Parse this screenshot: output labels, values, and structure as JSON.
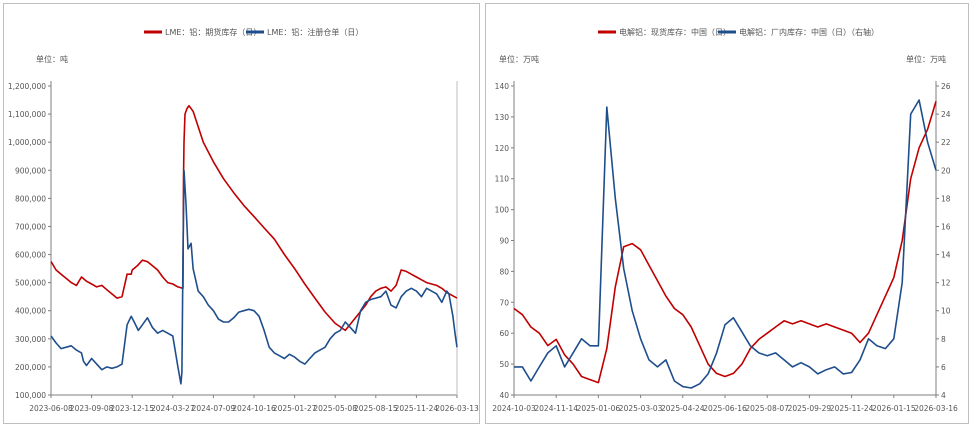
{
  "colors": {
    "red": "#c00000",
    "blue": "#1f4e8c",
    "axis": "#7f7f7f",
    "text": "#555555"
  },
  "chart_data": [
    {
      "type": "line",
      "legend": [
        "LME：铝：期货库存（日）",
        "LME：铝：注册仓单（日）"
      ],
      "left_unit": "单位：吨",
      "ylim": [
        100000,
        1200000
      ],
      "y_ticks": [
        "100,000",
        "200,000",
        "300,000",
        "400,000",
        "500,000",
        "600,000",
        "700,000",
        "800,000",
        "900,000",
        "1,000,000",
        "1,100,000",
        "1,200,000"
      ],
      "x_ticks": [
        "2023-06-08",
        "2023-09-08",
        "2023-12-15",
        "2024-03-27",
        "2024-07-09",
        "2024-10-16",
        "2025-01-27",
        "2025-05-08",
        "2025-08-15",
        "2025-11-24",
        "2026-03-13"
      ],
      "x_range": [
        0,
        40
      ],
      "series": [
        {
          "name": "LME：铝：期货库存（日）",
          "color": "red",
          "x": [
            0,
            0.5,
            1,
            1.5,
            2,
            2.5,
            3,
            3.5,
            4,
            4.5,
            5,
            5.5,
            6,
            6.5,
            7,
            7.5,
            7.9,
            8,
            8.5,
            9,
            9.5,
            10,
            10.5,
            11,
            11.5,
            12,
            12.5,
            13,
            13.05,
            13.1,
            13.2,
            13.4,
            13.6,
            14,
            15,
            16,
            17,
            18,
            19,
            20,
            21,
            22,
            23,
            24,
            25,
            26,
            27,
            28,
            29,
            30,
            31,
            31.5,
            32,
            32.5,
            33,
            33.5,
            34,
            34.5,
            35,
            35.5,
            36,
            36.5,
            37,
            37.5,
            38,
            38.5,
            39,
            39.5,
            40
          ],
          "y": [
            575000,
            545000,
            530000,
            515000,
            500000,
            490000,
            520000,
            505000,
            495000,
            485000,
            490000,
            475000,
            460000,
            445000,
            450000,
            530000,
            530000,
            545000,
            560000,
            580000,
            575000,
            560000,
            545000,
            520000,
            500000,
            495000,
            485000,
            480000,
            870000,
            1000000,
            1100000,
            1120000,
            1130000,
            1110000,
            1000000,
            930000,
            870000,
            820000,
            775000,
            735000,
            695000,
            655000,
            600000,
            550000,
            495000,
            445000,
            395000,
            355000,
            330000,
            375000,
            420000,
            450000,
            470000,
            480000,
            485000,
            470000,
            490000,
            545000,
            540000,
            530000,
            520000,
            510000,
            500000,
            495000,
            490000,
            480000,
            465000,
            455000,
            445000
          ]
        },
        {
          "name": "LME：铝：注册仓单（日）",
          "color": "blue",
          "x": [
            0,
            0.5,
            1,
            1.5,
            2,
            2.5,
            3,
            3.2,
            3.5,
            4,
            4.5,
            5,
            5.5,
            6,
            6.5,
            7,
            7.5,
            7.9,
            8.2,
            8.6,
            9,
            9.5,
            10,
            10.5,
            11,
            11.5,
            12,
            12.5,
            12.8,
            12.9,
            13,
            13.1,
            13.3,
            13.5,
            13.8,
            14,
            14.5,
            15,
            15.5,
            16,
            16.5,
            17,
            17.5,
            18,
            18.5,
            19,
            19.5,
            20,
            20.5,
            21,
            21.5,
            22,
            22.5,
            23,
            23.5,
            24,
            24.5,
            25,
            25.5,
            26,
            26.5,
            27,
            27.5,
            28,
            28.5,
            29,
            29.5,
            30,
            30.5,
            31,
            31.5,
            32,
            32.5,
            33,
            33.5,
            34,
            34.5,
            35,
            35.5,
            36,
            36.5,
            37,
            37.5,
            38,
            38.5,
            39,
            39.2,
            39.4,
            39.6,
            39.8,
            40
          ],
          "y": [
            310000,
            285000,
            265000,
            270000,
            275000,
            260000,
            250000,
            220000,
            205000,
            230000,
            210000,
            190000,
            200000,
            195000,
            200000,
            210000,
            350000,
            380000,
            360000,
            330000,
            350000,
            375000,
            340000,
            320000,
            330000,
            320000,
            310000,
            200000,
            140000,
            180000,
            600000,
            900000,
            780000,
            620000,
            640000,
            550000,
            470000,
            450000,
            420000,
            400000,
            370000,
            360000,
            360000,
            375000,
            395000,
            400000,
            405000,
            400000,
            380000,
            330000,
            270000,
            250000,
            240000,
            230000,
            245000,
            235000,
            220000,
            210000,
            230000,
            250000,
            260000,
            270000,
            300000,
            320000,
            330000,
            360000,
            340000,
            320000,
            400000,
            430000,
            440000,
            445000,
            450000,
            470000,
            420000,
            410000,
            450000,
            470000,
            480000,
            470000,
            450000,
            480000,
            470000,
            460000,
            430000,
            470000,
            460000,
            420000,
            380000,
            320000,
            270000
          ]
        }
      ]
    },
    {
      "type": "line",
      "legend": [
        "电解铝：现货库存：中国（日）",
        "电解铝：厂内库存：中国（日）（右轴）"
      ],
      "left_unit": "单位：万吨",
      "right_unit": "单位：万吨",
      "ylim": [
        40,
        140
      ],
      "y2lim": [
        4,
        26
      ],
      "y_ticks": [
        "40",
        "50",
        "60",
        "70",
        "80",
        "90",
        "100",
        "110",
        "120",
        "130",
        "140"
      ],
      "y2_ticks": [
        "4",
        "6",
        "8",
        "10",
        "12",
        "14",
        "16",
        "18",
        "20",
        "22",
        "24",
        "26"
      ],
      "x_ticks": [
        "2024-10-03",
        "2024-11-14",
        "2025-01-06",
        "2025-03-03",
        "2025-04-24",
        "2025-06-16",
        "2025-08-07",
        "2025-09-29",
        "2025-11-24",
        "2026-01-15",
        "2026-03-16"
      ],
      "x_range": [
        0,
        50
      ],
      "series": [
        {
          "name": "电解铝：现货库存：中国（日）",
          "axis": "left",
          "color": "red",
          "x": [
            0,
            1,
            2,
            3,
            4,
            5,
            6,
            7,
            8,
            9,
            10,
            11,
            12,
            13,
            14,
            15,
            16,
            17,
            18,
            19,
            20,
            21,
            22,
            23,
            24,
            25,
            26,
            27,
            28,
            29,
            30,
            31,
            32,
            33,
            34,
            35,
            36,
            37,
            38,
            39,
            40,
            41,
            42,
            43,
            44,
            45,
            46,
            47,
            48,
            49,
            50
          ],
          "y": [
            68,
            66,
            62,
            60,
            56,
            58,
            53,
            50,
            46,
            45,
            44,
            55,
            75,
            88,
            89,
            87,
            82,
            77,
            72,
            68,
            66,
            62,
            56,
            50,
            47,
            46,
            47,
            50,
            55,
            58,
            60,
            62,
            64,
            63,
            64,
            63,
            62,
            63,
            62,
            61,
            60,
            57,
            60,
            66,
            72,
            78,
            90,
            110,
            120,
            126,
            135
          ]
        },
        {
          "name": "电解铝：厂内库存：中国（日）（右轴）",
          "axis": "right",
          "color": "blue",
          "x": [
            0,
            1,
            2,
            3,
            4,
            5,
            6,
            7,
            8,
            9,
            10,
            11,
            12,
            13,
            14,
            15,
            16,
            17,
            18,
            19,
            20,
            21,
            22,
            23,
            24,
            25,
            26,
            27,
            28,
            29,
            30,
            31,
            32,
            33,
            34,
            35,
            36,
            37,
            38,
            39,
            40,
            41,
            42,
            43,
            44,
            45,
            46,
            47,
            48,
            49,
            50
          ],
          "y": [
            6.0,
            6.0,
            5.0,
            6.0,
            7.0,
            7.5,
            6.0,
            7.0,
            8.0,
            7.5,
            7.5,
            24.5,
            18.0,
            13.0,
            10.0,
            8.0,
            6.5,
            6.0,
            6.5,
            5.0,
            4.6,
            4.5,
            4.8,
            5.5,
            7.0,
            9.0,
            9.5,
            8.5,
            7.5,
            7.0,
            6.8,
            7.0,
            6.5,
            6.0,
            6.3,
            6.0,
            5.5,
            5.8,
            6.0,
            5.5,
            5.6,
            6.5,
            8.0,
            7.5,
            7.3,
            8.0,
            12.0,
            24.0,
            25.0,
            22.0,
            20.0
          ]
        }
      ]
    }
  ]
}
